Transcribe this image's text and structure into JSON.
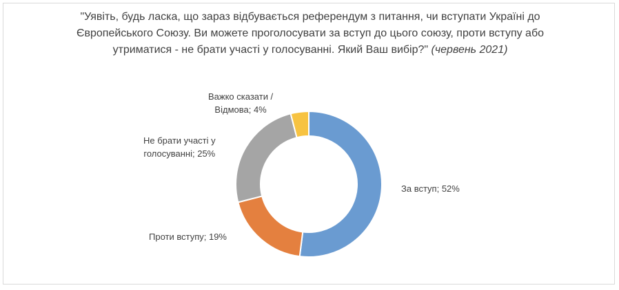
{
  "chart_data": {
    "type": "pie",
    "variant": "donut",
    "title": "\"Уявіть, будь ласка, що зараз відбувається референдум з питання, чи вступати Україні до Європейського Союзу. Ви можете проголосувати за вступ до цього союзу, проти вступу або утриматися - не брати участі у голосуванні. Який Ваш вибір?\"",
    "subtitle": "(червень 2021)",
    "legend": "none",
    "slices": [
      {
        "category": "За вступ",
        "value": 52,
        "color": "#6a9bd1",
        "label_line1": "За вступ; 52%",
        "label_line2": ""
      },
      {
        "category": "Проти вступу",
        "value": 19,
        "color": "#e4803f",
        "label_line1": "Проти вступу; 19%",
        "label_line2": ""
      },
      {
        "category": "Не брати участі у голосуванні",
        "value": 25,
        "color": "#a5a5a5",
        "label_line1": "Не брати участі у",
        "label_line2": "голосуванні; 25%"
      },
      {
        "category": "Важко сказати / Відмова",
        "value": 4,
        "color": "#f7c342",
        "label_line1": "Важко сказати /",
        "label_line2": "Відмова; 4%"
      }
    ]
  }
}
